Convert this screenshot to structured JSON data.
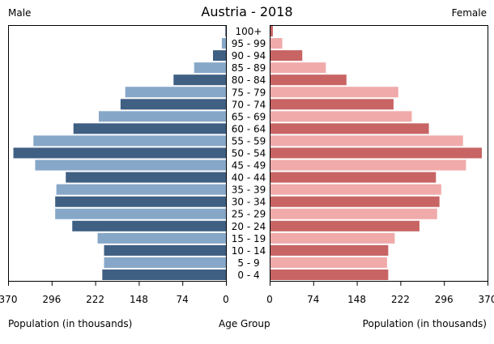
{
  "chart_data": {
    "type": "bar",
    "title": "Austria - 2018",
    "left_title": "Male",
    "right_title": "Female",
    "xlabel_left": "Population (in thousands)",
    "xlabel_center": "Age Group",
    "xlabel_right": "Population (in thousands)",
    "categories": [
      "100+",
      "95 - 99",
      "90 - 94",
      "85 - 89",
      "80 - 84",
      "75 - 79",
      "70 - 74",
      "65 - 69",
      "60 - 64",
      "55 - 59",
      "50 - 54",
      "45 - 49",
      "40 - 44",
      "35 - 39",
      "30 - 34",
      "25 - 29",
      "20 - 24",
      "15 - 19",
      "10 - 14",
      "5 - 9",
      "0 - 4"
    ],
    "series": [
      {
        "name": "Male",
        "values": [
          1,
          7,
          22,
          54,
          89,
          171,
          179,
          216,
          259,
          327,
          361,
          324,
          272,
          288,
          290,
          290,
          261,
          218,
          207,
          207,
          210
        ]
      },
      {
        "name": "Female",
        "values": [
          4,
          20,
          54,
          94,
          129,
          217,
          209,
          240,
          269,
          327,
          359,
          332,
          281,
          290,
          287,
          283,
          253,
          211,
          200,
          198,
          200
        ]
      }
    ],
    "xlim": [
      0,
      370
    ],
    "ticks": [
      "370",
      "296",
      "222",
      "148",
      "74",
      "0"
    ],
    "ticks_right": [
      "0",
      "74",
      "148",
      "222",
      "296",
      "370"
    ],
    "tick_values": [
      370,
      296,
      222,
      148,
      74,
      0
    ],
    "colors": {
      "male_dark": "#3f5f83",
      "male_light": "#87a7c8",
      "female_dark": "#c86464",
      "female_light": "#f0aaaa"
    }
  }
}
